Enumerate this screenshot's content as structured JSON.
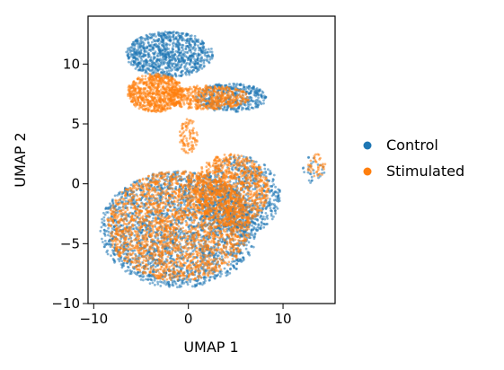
{
  "chart_data": {
    "type": "scatter",
    "xlabel": "UMAP 1",
    "ylabel": "UMAP 2",
    "xlim": [
      -10.6,
      15.5
    ],
    "ylim": [
      -10,
      14
    ],
    "xticks": [
      -10,
      0,
      10
    ],
    "xtick_labels": [
      "−10",
      "0",
      "10"
    ],
    "yticks": [
      -10,
      -5,
      0,
      5,
      10
    ],
    "ytick_labels": [
      "−10",
      "−5",
      "0",
      "5",
      "10"
    ],
    "grid": false,
    "legend": {
      "placement": "right",
      "entries": [
        "Control",
        "Stimulated"
      ]
    },
    "colors": {
      "Control": "#1f77b4",
      "Stimulated": "#ff7f0e"
    },
    "series": [
      {
        "name": "Control",
        "clusters": [
          {
            "cx": -2.0,
            "cy": 10.8,
            "rx": 4.6,
            "ry": 1.9,
            "n": 900
          },
          {
            "cx": 4.5,
            "cy": 7.2,
            "rx": 3.8,
            "ry": 1.2,
            "n": 400
          },
          {
            "cx": -1.0,
            "cy": -3.8,
            "rx": 8.3,
            "ry": 4.9,
            "n": 2200
          },
          {
            "cx": 5.5,
            "cy": -1.0,
            "rx": 4.2,
            "ry": 3.3,
            "n": 700
          },
          {
            "cx": 13.2,
            "cy": 1.2,
            "rx": 1.2,
            "ry": 1.2,
            "n": 30
          }
        ]
      },
      {
        "name": "Stimulated",
        "clusters": [
          {
            "cx": -3.5,
            "cy": 7.6,
            "rx": 3.0,
            "ry": 1.6,
            "n": 700
          },
          {
            "cx": 2.0,
            "cy": 7.2,
            "rx": 4.5,
            "ry": 1.0,
            "n": 500
          },
          {
            "cx": 0.0,
            "cy": 4.0,
            "rx": 1.0,
            "ry": 1.5,
            "n": 90
          },
          {
            "cx": -1.0,
            "cy": -3.5,
            "rx": 7.6,
            "ry": 4.6,
            "n": 2200
          },
          {
            "cx": 4.5,
            "cy": -0.5,
            "rx": 4.0,
            "ry": 3.0,
            "n": 900
          },
          {
            "cx": 13.5,
            "cy": 1.5,
            "rx": 1.0,
            "ry": 1.0,
            "n": 40
          }
        ]
      }
    ]
  }
}
